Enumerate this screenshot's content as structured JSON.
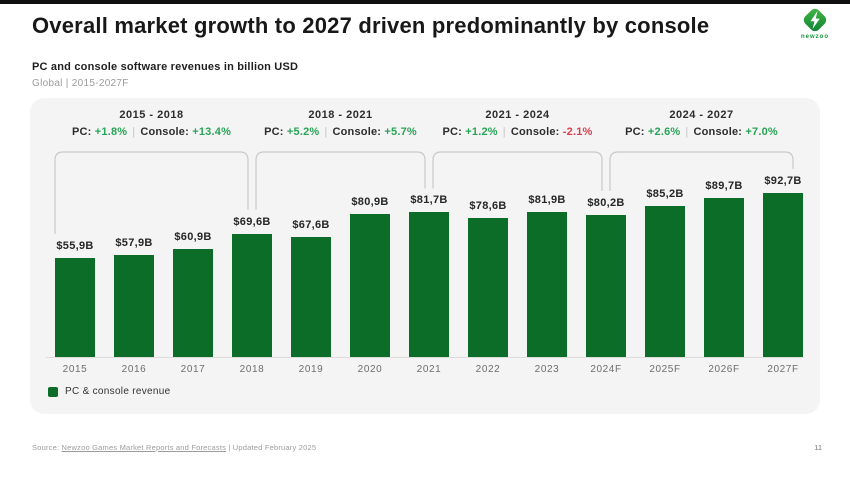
{
  "header": {
    "title": "Overall market growth to 2027 driven predominantly by console",
    "logo_text": "newzoo"
  },
  "subtitle": {
    "line1": "PC and console software revenues in billion USD",
    "line2": "Global | 2015-2027F"
  },
  "chart_data": {
    "type": "bar",
    "title": "PC and console software revenues in billion USD",
    "subtitle": "Global | 2015-2027F",
    "unit": "billion USD",
    "categories": [
      "2015",
      "2016",
      "2017",
      "2018",
      "2019",
      "2020",
      "2021",
      "2022",
      "2023",
      "2024F",
      "2025F",
      "2026F",
      "2027F"
    ],
    "values": [
      55.9,
      57.9,
      60.9,
      69.6,
      67.6,
      80.9,
      81.7,
      78.6,
      81.9,
      80.2,
      85.2,
      89.7,
      92.7
    ],
    "value_labels": [
      "$55,9B",
      "$57,9B",
      "$60,9B",
      "$69,6B",
      "$67,6B",
      "$80,9B",
      "$81,7B",
      "$78,6B",
      "$81,9B",
      "$80,2B",
      "$85,2B",
      "$89,7B",
      "$92,7B"
    ],
    "series_name": "PC & console revenue",
    "ylim": [
      0,
      100
    ],
    "grid": false,
    "legend_position": "bottom-left",
    "periods": [
      {
        "range": "2015 - 2018",
        "pc_label": "PC:",
        "pc_value": "+1.8%",
        "pc_trend": "up",
        "console_label": "Console:",
        "console_value": "+13.4%",
        "console_trend": "up"
      },
      {
        "range": "2018 - 2021",
        "pc_label": "PC:",
        "pc_value": "+5.2%",
        "pc_trend": "up",
        "console_label": "Console:",
        "console_value": "+5.7%",
        "console_trend": "up"
      },
      {
        "range": "2021 - 2024",
        "pc_label": "PC:",
        "pc_value": "+1.2%",
        "pc_trend": "up",
        "console_label": "Console:",
        "console_value": "-2.1%",
        "console_trend": "down"
      },
      {
        "range": "2024 - 2027",
        "pc_label": "PC:",
        "pc_value": "+2.6%",
        "pc_trend": "up",
        "console_label": "Console:",
        "console_value": "+7.0%",
        "console_trend": "up"
      }
    ]
  },
  "legend": {
    "label": "PC & console revenue"
  },
  "footer": {
    "source_prefix": "Source:",
    "source_link": "Newzoo Games Market Reports and Forecasts",
    "source_suffix": "| Updated February 2025",
    "page_number": "11"
  },
  "colors": {
    "bar": "#0b6d27",
    "positive": "#29a356",
    "negative": "#da3e4b",
    "card_bg": "#f4f4f4",
    "bracket": "#c9c9c9",
    "logo_green_light": "#47bb45",
    "logo_green_dark": "#0a7f35"
  }
}
